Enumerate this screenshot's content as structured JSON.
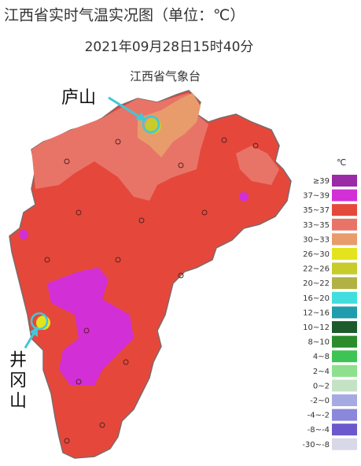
{
  "header": {
    "title": "江西省实时气温实况图（单位：℃）",
    "subtitle": "2021年09月28日15时40分"
  },
  "map": {
    "source": "江西省气象台",
    "labels": [
      "庐山",
      "井冈山"
    ]
  },
  "legend": {
    "unit": "℃",
    "items": [
      {
        "label": "≥39",
        "color": "#9a2aa6"
      },
      {
        "label": "37~39",
        "color": "#d22fd6"
      },
      {
        "label": "35~37",
        "color": "#e4493b"
      },
      {
        "label": "33~35",
        "color": "#e87468"
      },
      {
        "label": "30~33",
        "color": "#e89c6c"
      },
      {
        "label": "26~30",
        "color": "#e4e41e"
      },
      {
        "label": "22~26",
        "color": "#c8cc2a"
      },
      {
        "label": "20~22",
        "color": "#b2b244"
      },
      {
        "label": "16~20",
        "color": "#40dede"
      },
      {
        "label": "12~16",
        "color": "#1f9cae"
      },
      {
        "label": "10~12",
        "color": "#1d5a2c"
      },
      {
        "label": "8~10",
        "color": "#2a8c2a"
      },
      {
        "label": "4~8",
        "color": "#3ec454"
      },
      {
        "label": "2~4",
        "color": "#8ee08e"
      },
      {
        "label": "0~2",
        "color": "#c4e2c4"
      },
      {
        "label": "-2~0",
        "color": "#a6aae2"
      },
      {
        "label": "-4~-2",
        "color": "#8a88da"
      },
      {
        "label": "-8~-4",
        "color": "#6a58cc"
      },
      {
        "label": "-30~-8",
        "color": "#d8d8e8"
      }
    ]
  }
}
